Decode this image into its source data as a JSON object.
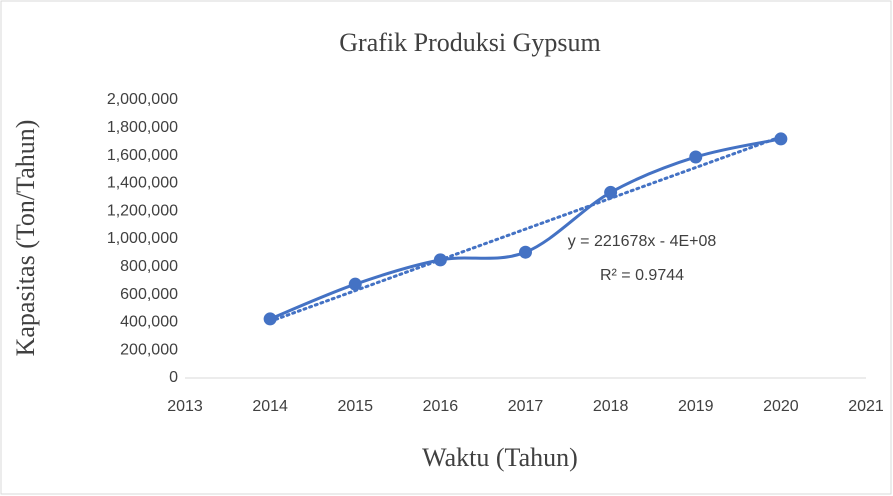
{
  "chart_data": {
    "type": "line",
    "title": "Grafik Produksi Gypsum",
    "x_label": "Waktu (Tahun)",
    "y_label": "Kapasitas (Ton/Tahun)",
    "x": [
      2014,
      2015,
      2016,
      2017,
      2018,
      2019,
      2020
    ],
    "series": [
      {
        "name": "Kapasitas",
        "color": "#4472c4",
        "values": [
          425000,
          675000,
          850000,
          905000,
          1335000,
          1590000,
          1720000
        ]
      }
    ],
    "trendline": "linear",
    "annotations": [
      "y = 221678x - 4E+08",
      "R² = 0.9744"
    ],
    "xlim": [
      2013,
      2021
    ],
    "xticks": [
      2013,
      2014,
      2015,
      2016,
      2017,
      2018,
      2019,
      2020,
      2021
    ],
    "ylim": [
      0,
      2000000
    ],
    "yticks": [
      0,
      {
        "value": 200000,
        "label": "200,000"
      },
      {
        "value": 400000,
        "label": "400,000"
      },
      {
        "value": 600000,
        "label": "600,000"
      },
      {
        "value": 800000,
        "label": "800,000"
      },
      {
        "value": 1000000,
        "label": "1,000,000"
      },
      {
        "value": 1200000,
        "label": "1,200,000"
      },
      {
        "value": 1400000,
        "label": "1,400,000"
      },
      {
        "value": 1600000,
        "label": "1,600,000"
      },
      {
        "value": 1800000,
        "label": "1,800,000"
      },
      {
        "value": 2000000,
        "label": "2,000,000"
      }
    ],
    "grid": false
  }
}
